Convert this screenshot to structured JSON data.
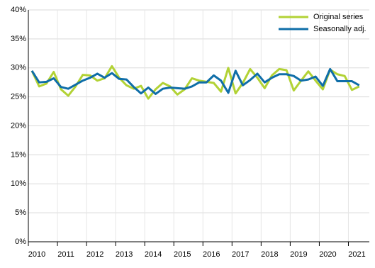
{
  "chart_data": {
    "type": "line",
    "categories": [
      "2010",
      null,
      null,
      null,
      "2011",
      null,
      null,
      null,
      "2012",
      null,
      null,
      null,
      "2013",
      null,
      null,
      null,
      "2014",
      null,
      null,
      null,
      "2015",
      null,
      null,
      null,
      "2016",
      null,
      null,
      null,
      "2017",
      null,
      null,
      null,
      "2018",
      null,
      null,
      null,
      "2019",
      null,
      null,
      null,
      "2020",
      null,
      null,
      null,
      "2021",
      null
    ],
    "series": [
      {
        "name": "Original series",
        "color": "#b2d235",
        "values": [
          29.5,
          26.8,
          27.3,
          29.3,
          26.3,
          25.2,
          26.8,
          28.8,
          28.7,
          27.8,
          28.2,
          30.3,
          28.3,
          27.0,
          26.4,
          26.9,
          24.7,
          26.3,
          27.4,
          26.8,
          25.4,
          26.3,
          28.2,
          27.8,
          27.6,
          27.4,
          25.9,
          30.0,
          25.6,
          27.4,
          29.8,
          28.3,
          26.5,
          28.7,
          29.8,
          29.6,
          26.1,
          27.8,
          29.4,
          27.8,
          26.3,
          29.7,
          28.9,
          28.6,
          26.2,
          26.8
        ]
      },
      {
        "name": "Seasonally adj.",
        "color": "#0f6ea8",
        "values": [
          29.5,
          27.5,
          27.6,
          28.2,
          26.7,
          26.4,
          27.1,
          27.8,
          28.3,
          29.0,
          28.3,
          29.1,
          28.1,
          28.0,
          26.7,
          25.6,
          26.6,
          25.5,
          26.4,
          26.6,
          26.5,
          26.4,
          26.8,
          27.5,
          27.5,
          28.7,
          27.8,
          25.7,
          29.5,
          27.0,
          27.9,
          29.0,
          27.5,
          28.3,
          28.9,
          28.9,
          28.6,
          27.8,
          28.0,
          28.5,
          26.9,
          29.8,
          27.7,
          27.7,
          27.7,
          27.0
        ]
      }
    ],
    "ylim": [
      0,
      40
    ],
    "yticks": [
      {
        "value": 0,
        "label": "0%"
      },
      {
        "value": 5,
        "label": "5%"
      },
      {
        "value": 10,
        "label": "10%"
      },
      {
        "value": 15,
        "label": "15%"
      },
      {
        "value": 20,
        "label": "20%"
      },
      {
        "value": 25,
        "label": "25%"
      },
      {
        "value": 30,
        "label": "30%"
      },
      {
        "value": 35,
        "label": "35%"
      },
      {
        "value": 40,
        "label": "40%"
      }
    ],
    "grid": true,
    "legend": "top-right"
  }
}
